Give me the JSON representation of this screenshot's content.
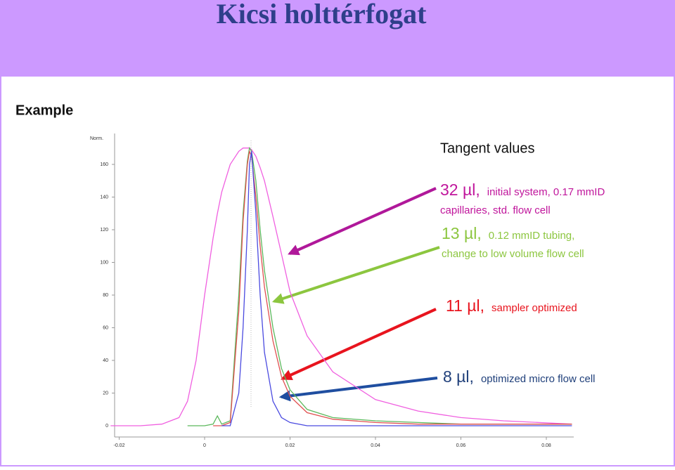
{
  "title": "Kicsi holttérfogat",
  "chart_data": {
    "type": "line",
    "title": "Example",
    "ylabel": "Norm.",
    "x": [
      -0.022,
      -0.015,
      -0.01,
      -0.006,
      -0.004,
      -0.002,
      0,
      0.002,
      0.003,
      0.004,
      0.006,
      0.008,
      0.009,
      0.01,
      0.0105,
      0.011,
      0.012,
      0.013,
      0.014,
      0.016,
      0.018,
      0.02,
      0.024,
      0.03,
      0.04,
      0.05,
      0.06,
      0.07,
      0.086
    ],
    "series": [
      {
        "color": "#f060e0",
        "values": [
          0,
          0,
          1,
          5,
          15,
          40,
          80,
          115,
          130,
          143,
          160,
          168,
          170,
          170,
          170,
          169,
          165,
          158,
          150,
          128,
          105,
          82,
          55,
          33,
          16,
          9,
          5,
          3,
          1
        ]
      },
      {
        "color": "#5cb85c",
        "values": [
          null,
          null,
          null,
          null,
          0,
          0,
          0,
          1,
          6,
          1,
          3,
          80,
          130,
          162,
          170,
          168,
          150,
          120,
          95,
          60,
          35,
          22,
          10,
          5,
          3,
          2,
          1,
          1,
          1
        ]
      },
      {
        "color": "#e05050",
        "values": [
          null,
          null,
          null,
          null,
          null,
          null,
          null,
          0,
          0,
          0,
          2,
          70,
          125,
          160,
          168,
          165,
          140,
          110,
          85,
          52,
          30,
          18,
          8,
          4,
          2,
          1,
          1,
          1,
          1
        ]
      },
      {
        "color": "#4a4ae0",
        "values": [
          null,
          null,
          null,
          null,
          null,
          null,
          null,
          null,
          null,
          0,
          0,
          20,
          60,
          120,
          160,
          168,
          130,
          80,
          45,
          15,
          5,
          2,
          0,
          0,
          0,
          0,
          0,
          0,
          0
        ]
      }
    ],
    "xlim": [
      -0.022,
      0.086
    ],
    "ylim": [
      -7,
      179
    ],
    "xticks": [
      -0.02,
      0,
      0.02,
      0.04,
      0.06,
      0.08
    ],
    "yticks": [
      0,
      20,
      40,
      60,
      80,
      100,
      120,
      140,
      160
    ],
    "annotations": [
      {
        "text": "Tangent values"
      },
      {
        "label": "32 µl,",
        "lines": [
          "initial system, 0.17 mmID",
          "capillaries, std. flow cell"
        ],
        "color": "#c0169c"
      },
      {
        "label": "13 µl,",
        "lines": [
          "0.12 mmID tubing,",
          "change to low volume flow cell"
        ],
        "color": "#8cc63f"
      },
      {
        "label": "11 µl,",
        "lines": [
          "sampler optimized"
        ],
        "color": "#e8141e"
      },
      {
        "label": "8 µl,",
        "lines": [
          "optimized micro flow cell"
        ],
        "color": "#1f3f7a"
      }
    ]
  }
}
